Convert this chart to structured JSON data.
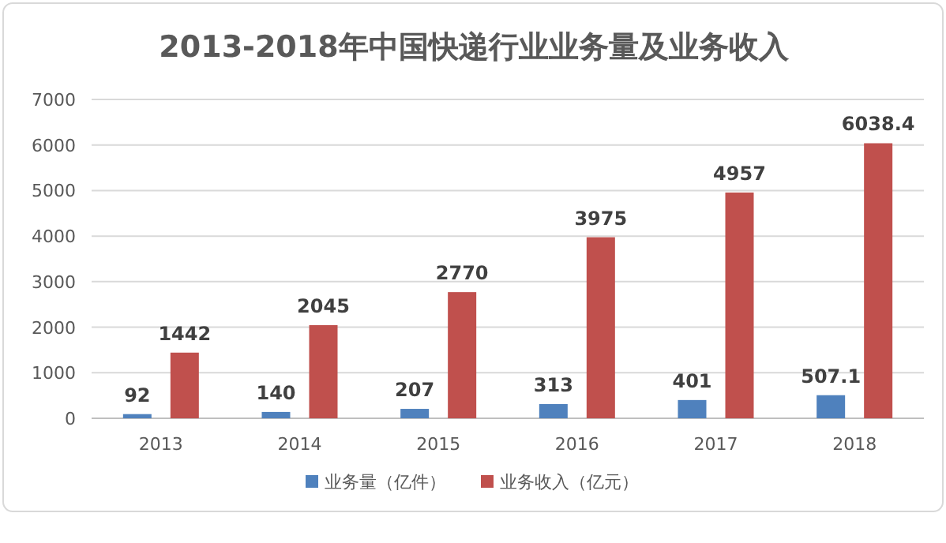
{
  "chart_data": {
    "type": "bar",
    "title": "2013-2018年中国快递行业业务量及业务收入",
    "categories": [
      "2013",
      "2014",
      "2015",
      "2016",
      "2017",
      "2018"
    ],
    "series": [
      {
        "name": "业务量（亿件）",
        "color": "#4f81bd",
        "values": [
          92,
          140,
          207,
          313,
          401,
          507.1
        ]
      },
      {
        "name": "业务收入（亿元）",
        "color": "#c0504d",
        "values": [
          1442,
          2045,
          2770,
          3975,
          4957,
          6038.4
        ]
      }
    ],
    "ylim": [
      0,
      7000
    ],
    "yticks": [
      0,
      1000,
      2000,
      3000,
      4000,
      5000,
      6000,
      7000
    ],
    "grid": "y",
    "legend": "bottom",
    "data_labels": true
  }
}
